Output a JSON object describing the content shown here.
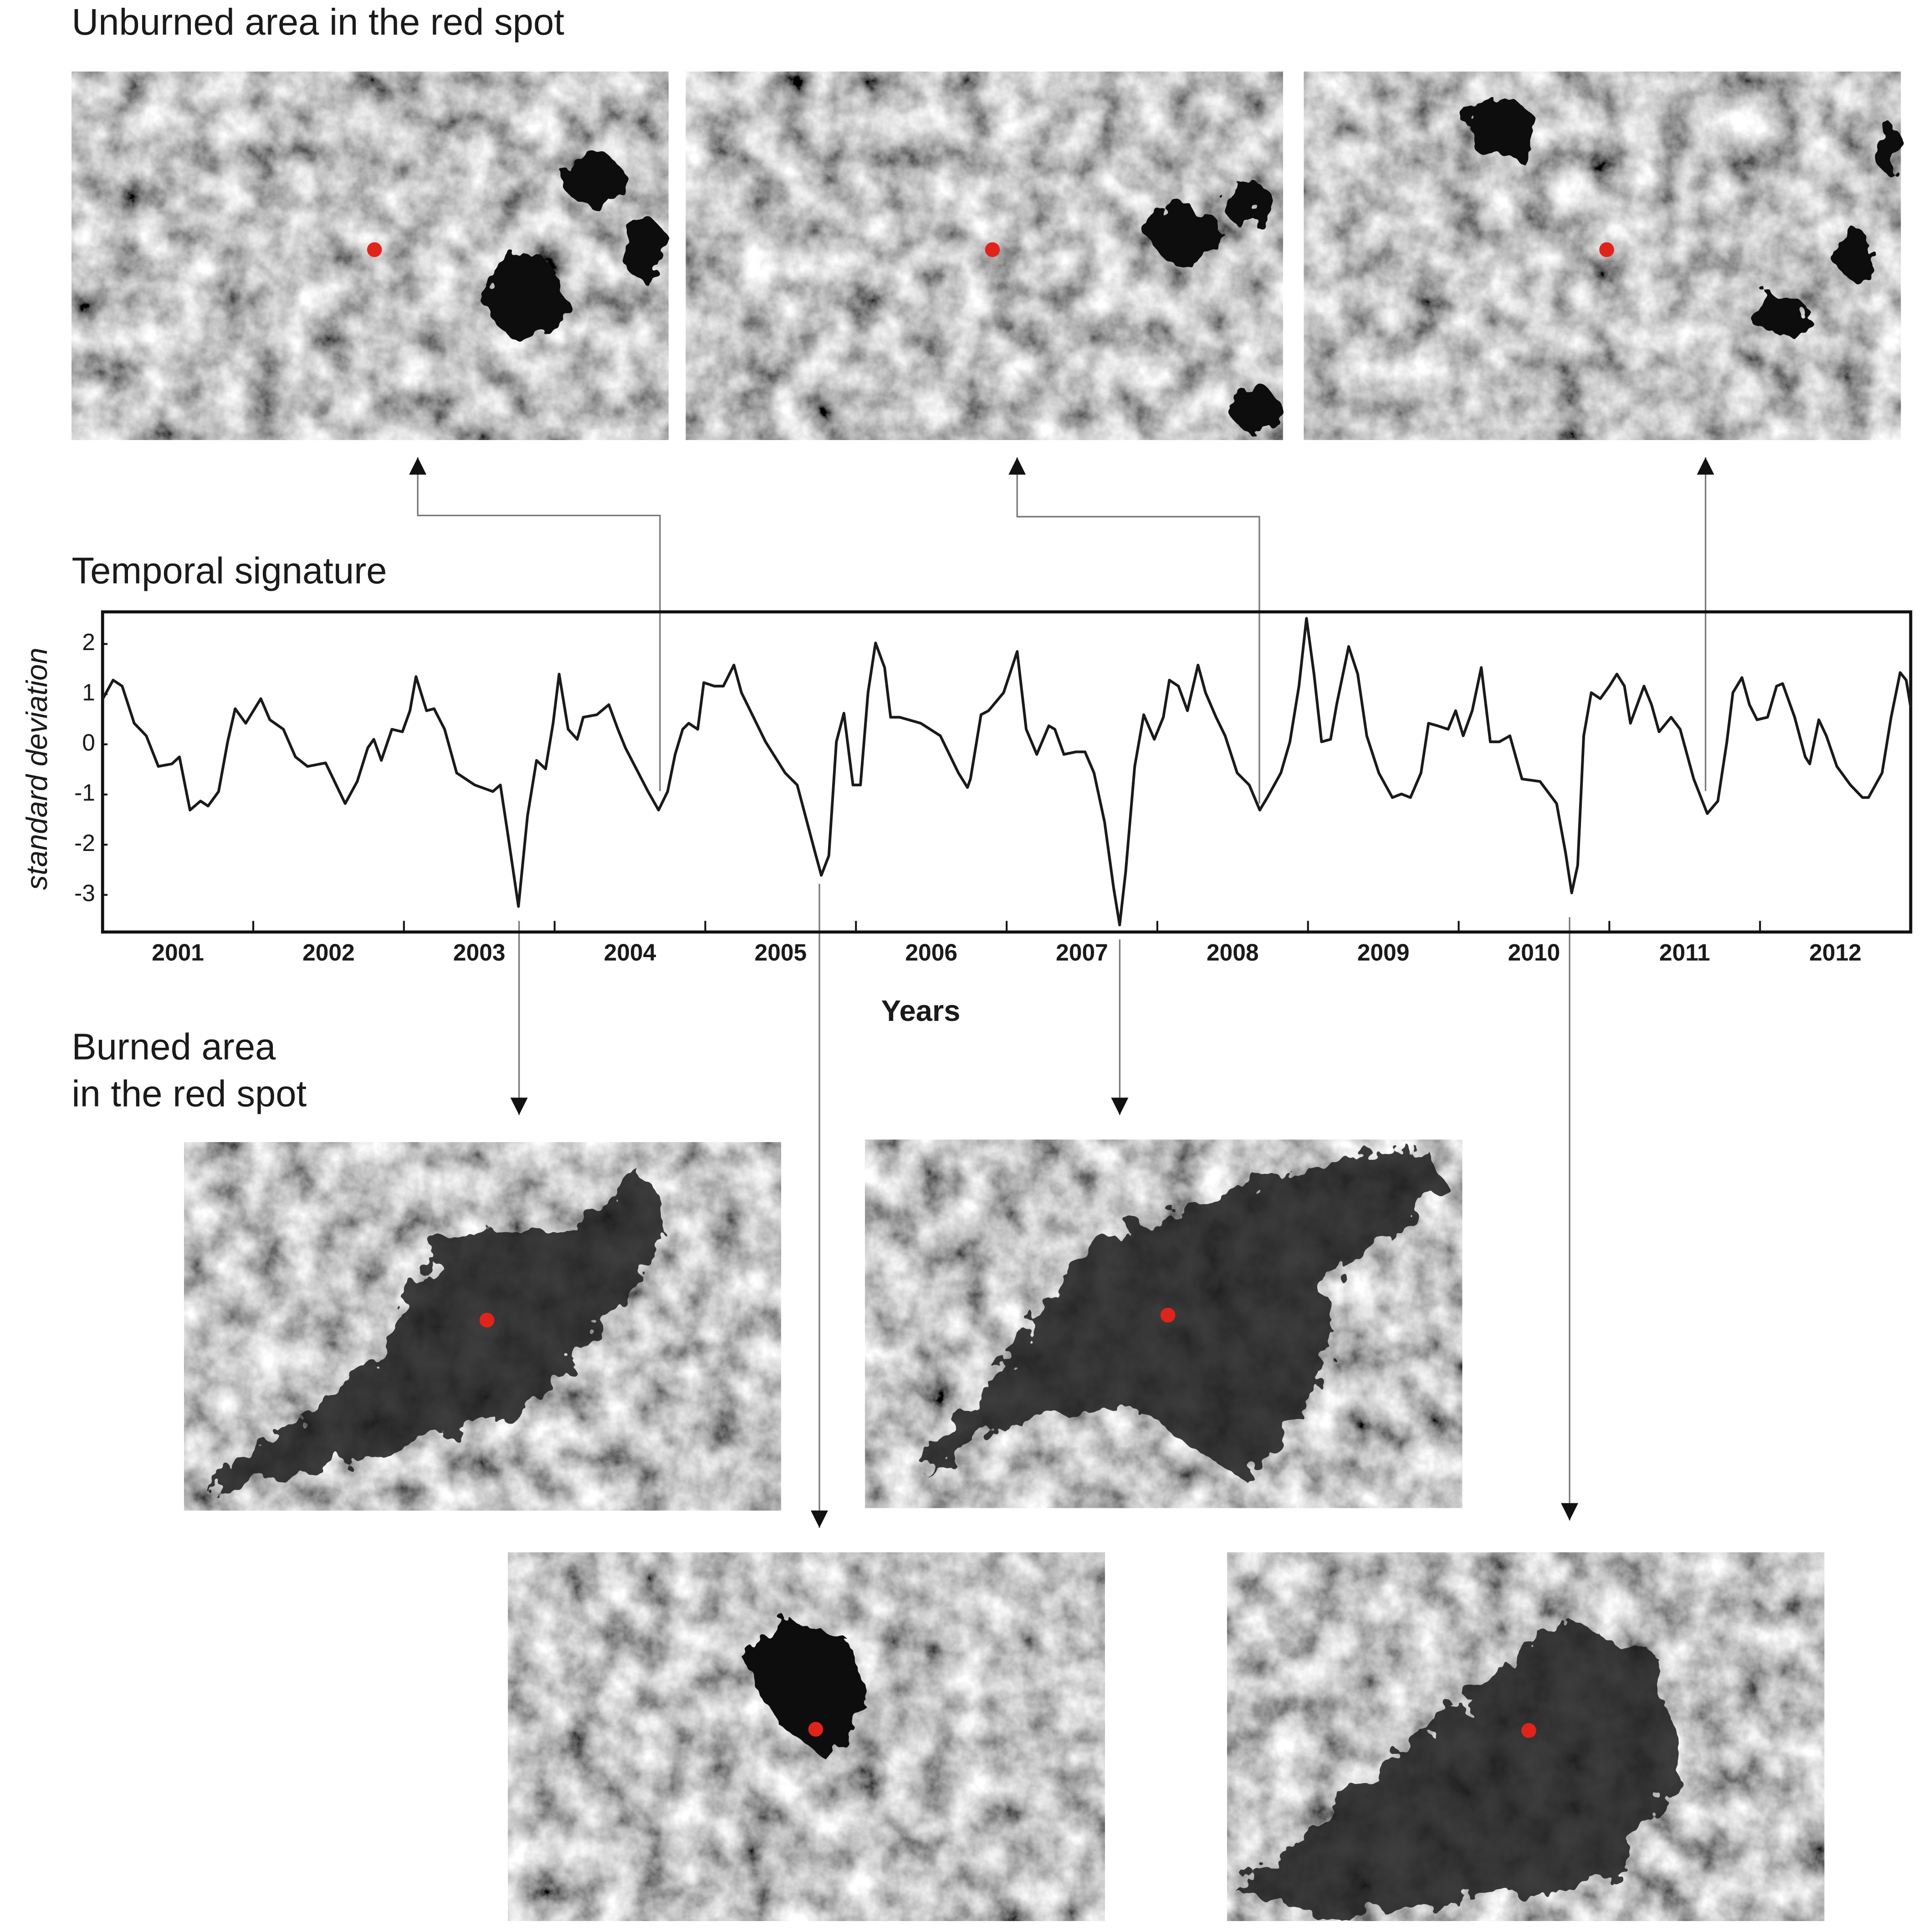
{
  "unburned_title": "Unburned area in the red spot",
  "temporal_title": "Temporal signature",
  "burned_title": [
    "Burned area",
    "in the red spot"
  ],
  "chart_data": {
    "type": "line",
    "xlabel": "Years",
    "ylabel": "standard deviation",
    "color": "#1a1a1a",
    "xlim": [
      2001,
      2013
    ],
    "ylim": [
      -3.74,
      2.64
    ],
    "yticks": [
      2,
      1,
      0,
      -1,
      -2,
      -3
    ],
    "xticks": [
      {
        "value": 2001.5,
        "label": "2001"
      },
      {
        "value": 2002.5,
        "label": "2002"
      },
      {
        "value": 2003.5,
        "label": "2003"
      },
      {
        "value": 2004.5,
        "label": "2004"
      },
      {
        "value": 2005.5,
        "label": "2005"
      },
      {
        "value": 2006.5,
        "label": "2006"
      },
      {
        "value": 2007.5,
        "label": "2007"
      },
      {
        "value": 2008.5,
        "label": "2008"
      },
      {
        "value": 2009.5,
        "label": "2009"
      },
      {
        "value": 2010.5,
        "label": "2010"
      },
      {
        "value": 2011.5,
        "label": "2011"
      },
      {
        "value": 2012.5,
        "label": "2012"
      }
    ],
    "xtick_marks": [
      2002,
      2003,
      2004,
      2005,
      2006,
      2007,
      2008,
      2009,
      2010,
      2011,
      2012
    ],
    "x": [
      2001.0,
      2001.07,
      2001.13,
      2001.21,
      2001.29,
      2001.37,
      2001.46,
      2001.51,
      2001.58,
      2001.65,
      2001.7,
      2001.77,
      2001.83,
      2001.88,
      2001.95,
      2002.05,
      2002.11,
      2002.2,
      2002.28,
      2002.36,
      2002.48,
      2002.61,
      2002.69,
      2002.76,
      2002.8,
      2002.85,
      2002.92,
      2002.99,
      2003.04,
      2003.08,
      2003.15,
      2003.2,
      2003.27,
      2003.35,
      2003.47,
      2003.59,
      2003.64,
      2003.69,
      2003.76,
      2003.82,
      2003.88,
      2003.94,
      2003.99,
      2004.03,
      2004.09,
      2004.15,
      2004.19,
      2004.28,
      2004.36,
      2004.42,
      2004.47,
      2004.62,
      2004.69,
      2004.75,
      2004.8,
      2004.85,
      2004.89,
      2004.95,
      2004.99,
      2005.06,
      2005.12,
      2005.19,
      2005.24,
      2005.32,
      2005.4,
      2005.53,
      2005.61,
      2005.73,
      2005.77,
      2005.82,
      2005.87,
      2005.92,
      2005.98,
      2006.03,
      2006.08,
      2006.13,
      2006.19,
      2006.23,
      2006.29,
      2006.43,
      2006.56,
      2006.68,
      2006.74,
      2006.76,
      2006.83,
      2006.88,
      2006.98,
      2007.07,
      2007.13,
      2007.2,
      2007.28,
      2007.32,
      2007.38,
      2007.46,
      2007.52,
      2007.58,
      2007.65,
      2007.71,
      2007.75,
      2007.79,
      2007.85,
      2007.91,
      2007.98,
      2008.04,
      2008.08,
      2008.14,
      2008.2,
      2008.27,
      2008.32,
      2008.39,
      2008.45,
      2008.53,
      2008.61,
      2008.68,
      2008.73,
      2008.82,
      2008.88,
      2008.94,
      2008.99,
      2009.04,
      2009.09,
      2009.15,
      2009.19,
      2009.27,
      2009.33,
      2009.39,
      2009.47,
      2009.56,
      2009.62,
      2009.68,
      2009.75,
      2009.8,
      2009.86,
      2009.93,
      2009.98,
      2010.03,
      2010.09,
      2010.15,
      2010.21,
      2010.27,
      2010.34,
      2010.42,
      2010.54,
      2010.65,
      2010.71,
      2010.75,
      2010.79,
      2010.83,
      2010.88,
      2010.94,
      2011.0,
      2011.05,
      2011.1,
      2011.14,
      2011.23,
      2011.28,
      2011.33,
      2011.41,
      2011.47,
      2011.56,
      2011.65,
      2011.72,
      2011.78,
      2011.82,
      2011.88,
      2011.93,
      2011.98,
      2012.05,
      2012.11,
      2012.15,
      2012.23,
      2012.3,
      2012.33,
      2012.39,
      2012.44,
      2012.51,
      2012.6,
      2012.68,
      2012.72,
      2012.81,
      2012.87,
      2012.93,
      2012.97,
      2013.0
    ],
    "values": [
      0.9,
      1.28,
      1.16,
      0.42,
      0.17,
      -0.44,
      -0.39,
      -0.25,
      -1.31,
      -1.13,
      -1.23,
      -0.94,
      0.05,
      0.71,
      0.42,
      0.91,
      0.49,
      0.3,
      -0.25,
      -0.44,
      -0.37,
      -1.18,
      -0.74,
      -0.07,
      0.1,
      -0.32,
      0.3,
      0.25,
      0.67,
      1.35,
      0.67,
      0.71,
      0.3,
      -0.57,
      -0.81,
      -0.94,
      -0.81,
      -1.8,
      -3.23,
      -1.43,
      -0.32,
      -0.49,
      0.42,
      1.4,
      0.3,
      0.1,
      0.54,
      0.59,
      0.79,
      0.3,
      -0.07,
      -0.94,
      -1.31,
      -0.94,
      -0.2,
      0.3,
      0.42,
      0.3,
      1.23,
      1.16,
      1.16,
      1.58,
      1.03,
      0.54,
      0.05,
      -0.57,
      -0.81,
      -2.17,
      -2.61,
      -2.22,
      0.05,
      0.62,
      -0.81,
      -0.81,
      1.03,
      2.02,
      1.53,
      0.54,
      0.54,
      0.42,
      0.17,
      -0.57,
      -0.86,
      -0.69,
      0.59,
      0.67,
      1.03,
      1.85,
      0.3,
      -0.2,
      0.37,
      0.3,
      -0.2,
      -0.15,
      -0.15,
      -0.57,
      -1.55,
      -2.86,
      -3.6,
      -2.54,
      -0.44,
      0.59,
      0.1,
      0.54,
      1.28,
      1.16,
      0.67,
      1.58,
      1.03,
      0.54,
      0.17,
      -0.57,
      -0.81,
      -1.31,
      -1.06,
      -0.57,
      0.05,
      1.16,
      2.51,
      1.4,
      0.05,
      0.1,
      0.79,
      1.95,
      1.4,
      0.17,
      -0.57,
      -1.06,
      -0.99,
      -1.06,
      -0.57,
      0.42,
      0.37,
      0.3,
      0.67,
      0.17,
      0.67,
      1.53,
      0.05,
      0.05,
      0.17,
      -0.69,
      -0.74,
      -1.18,
      -2.17,
      -2.96,
      -2.41,
      0.17,
      1.03,
      0.91,
      1.16,
      1.4,
      1.16,
      0.42,
      1.16,
      0.79,
      0.25,
      0.54,
      0.3,
      -0.69,
      -1.38,
      -1.13,
      0.05,
      1.03,
      1.33,
      0.79,
      0.49,
      0.54,
      1.16,
      1.21,
      0.54,
      -0.25,
      -0.39,
      0.49,
      0.17,
      -0.44,
      -0.81,
      -1.06,
      -1.06,
      -0.57,
      0.54,
      1.43,
      1.28,
      0.74
    ]
  }
}
